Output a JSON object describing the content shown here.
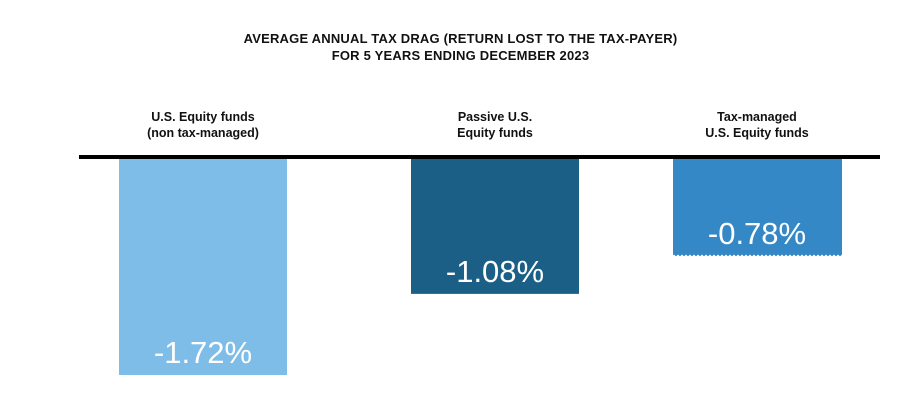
{
  "title_lines": [
    "AVERAGE ANNUAL TAX DRAG (RETURN LOST TO THE TAX-PAYER)",
    "FOR 5 YEARS ENDING DECEMBER 2023"
  ],
  "chart_data": {
    "type": "bar",
    "title": "AVERAGE ANNUAL TAX DRAG (RETURN LOST TO THE TAX-PAYER) FOR 5 YEARS ENDING DECEMBER 2023",
    "categories": [
      "U.S. Equity funds (non tax-managed)",
      "Passive U.S. Equity funds",
      "Tax-managed U.S. Equity funds"
    ],
    "category_label_lines": [
      [
        "U.S. Equity funds",
        "(non tax-managed)"
      ],
      [
        "Passive U.S.",
        "Equity funds"
      ],
      [
        "Tax-managed",
        "U.S. Equity funds"
      ]
    ],
    "values": [
      -1.72,
      -1.08,
      -0.78
    ],
    "data_labels": [
      "-1.72%",
      "-1.08%",
      "-0.78%"
    ],
    "colors": [
      "#7fbde9",
      "#1b5f86",
      "#3488c6"
    ],
    "baseline_color": "#000000",
    "ylim": [
      -1.72,
      0
    ],
    "xlabel": "",
    "ylabel": "",
    "grid": false,
    "legend": "none"
  }
}
